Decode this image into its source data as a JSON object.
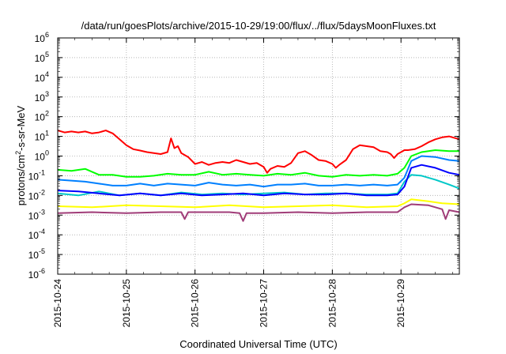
{
  "chart_data": {
    "type": "line",
    "title": "/data/run/goesPlots/archive/2015-10-29/19:00/flux/../flux/5daysMoonFluxes.txt",
    "xlabel": "Coordinated Universal Time (UTC)",
    "ylabel": {
      "base": "protons/cm",
      "sup": "2",
      "rest": "-s-sr-MeV"
    },
    "x_ticks": [
      "2015-10-24",
      "2015-10-25",
      "2015-10-26",
      "2015-10-27",
      "2015-10-28",
      "2015-10-29"
    ],
    "x_range_days": [
      0,
      5.85
    ],
    "y_scale": "log",
    "y_ticks": [
      {
        "base": "10",
        "exp": "-6"
      },
      {
        "base": "10",
        "exp": "-5"
      },
      {
        "base": "10",
        "exp": "-4"
      },
      {
        "base": "10",
        "exp": "-3"
      },
      {
        "base": "10",
        "exp": "-2"
      },
      {
        "base": "10",
        "exp": "-1"
      },
      {
        "base": "10",
        "exp": "0"
      },
      {
        "base": "10",
        "exp": "1"
      },
      {
        "base": "10",
        "exp": "2"
      },
      {
        "base": "10",
        "exp": "3"
      },
      {
        "base": "10",
        "exp": "4"
      },
      {
        "base": "10",
        "exp": "5"
      },
      {
        "base": "10",
        "exp": "6"
      }
    ],
    "ylim_log10": [
      -6,
      6
    ],
    "grid": true,
    "legend": "none",
    "series": [
      {
        "color": "#ff0000",
        "points": [
          [
            0,
            1.3
          ],
          [
            0.1,
            1.2
          ],
          [
            0.2,
            1.25
          ],
          [
            0.3,
            1.2
          ],
          [
            0.4,
            1.25
          ],
          [
            0.5,
            1.15
          ],
          [
            0.6,
            1.2
          ],
          [
            0.7,
            1.3
          ],
          [
            0.8,
            1.15
          ],
          [
            0.9,
            0.85
          ],
          [
            1.0,
            0.55
          ],
          [
            1.1,
            0.35
          ],
          [
            1.2,
            0.28
          ],
          [
            1.3,
            0.2
          ],
          [
            1.4,
            0.15
          ],
          [
            1.5,
            0.1
          ],
          [
            1.6,
            0.2
          ],
          [
            1.65,
            0.9
          ],
          [
            1.7,
            0.4
          ],
          [
            1.75,
            0.5
          ],
          [
            1.8,
            0.15
          ],
          [
            1.9,
            -0.05
          ],
          [
            2.0,
            -0.4
          ],
          [
            2.1,
            -0.3
          ],
          [
            2.2,
            -0.45
          ],
          [
            2.3,
            -0.35
          ],
          [
            2.4,
            -0.3
          ],
          [
            2.5,
            -0.35
          ],
          [
            2.6,
            -0.2
          ],
          [
            2.7,
            -0.3
          ],
          [
            2.8,
            -0.4
          ],
          [
            2.9,
            -0.35
          ],
          [
            3.0,
            -0.55
          ],
          [
            3.05,
            -0.85
          ],
          [
            3.1,
            -0.65
          ],
          [
            3.2,
            -0.5
          ],
          [
            3.3,
            -0.55
          ],
          [
            3.4,
            -0.35
          ],
          [
            3.5,
            0.15
          ],
          [
            3.6,
            0.25
          ],
          [
            3.7,
            0.05
          ],
          [
            3.8,
            -0.2
          ],
          [
            3.9,
            -0.25
          ],
          [
            4.0,
            -0.4
          ],
          [
            4.05,
            -0.6
          ],
          [
            4.1,
            -0.45
          ],
          [
            4.2,
            -0.2
          ],
          [
            4.3,
            0.35
          ],
          [
            4.4,
            0.55
          ],
          [
            4.5,
            0.5
          ],
          [
            4.6,
            0.45
          ],
          [
            4.7,
            0.25
          ],
          [
            4.8,
            0.2
          ],
          [
            4.85,
            0.1
          ],
          [
            4.9,
            -0.1
          ],
          [
            4.95,
            0.1
          ],
          [
            5.0,
            0.2
          ],
          [
            5.05,
            0.3
          ],
          [
            5.1,
            0.3
          ],
          [
            5.2,
            0.35
          ],
          [
            5.3,
            0.5
          ],
          [
            5.4,
            0.7
          ],
          [
            5.5,
            0.85
          ],
          [
            5.6,
            0.95
          ],
          [
            5.7,
            1.0
          ],
          [
            5.8,
            0.9
          ],
          [
            5.85,
            0.85
          ]
        ]
      },
      {
        "color": "#00ff00",
        "points": [
          [
            0,
            -0.7
          ],
          [
            0.2,
            -0.75
          ],
          [
            0.4,
            -0.65
          ],
          [
            0.6,
            -0.95
          ],
          [
            0.8,
            -0.95
          ],
          [
            1.0,
            -1.05
          ],
          [
            1.2,
            -1.05
          ],
          [
            1.4,
            -1.0
          ],
          [
            1.6,
            -0.9
          ],
          [
            1.8,
            -0.95
          ],
          [
            2.0,
            -0.95
          ],
          [
            2.2,
            -0.8
          ],
          [
            2.4,
            -0.95
          ],
          [
            2.6,
            -0.9
          ],
          [
            2.8,
            -0.95
          ],
          [
            3.0,
            -1.0
          ],
          [
            3.2,
            -0.9
          ],
          [
            3.4,
            -0.95
          ],
          [
            3.6,
            -0.85
          ],
          [
            3.8,
            -1.0
          ],
          [
            4.0,
            -1.05
          ],
          [
            4.2,
            -0.95
          ],
          [
            4.4,
            -1.0
          ],
          [
            4.6,
            -0.95
          ],
          [
            4.8,
            -1.0
          ],
          [
            4.95,
            -0.9
          ],
          [
            5.05,
            -0.6
          ],
          [
            5.15,
            0.0
          ],
          [
            5.3,
            0.2
          ],
          [
            5.5,
            0.3
          ],
          [
            5.7,
            0.25
          ],
          [
            5.85,
            0.25
          ]
        ]
      },
      {
        "color": "#00c8c8",
        "points": [
          [
            0,
            -1.9
          ],
          [
            0.3,
            -2.0
          ],
          [
            0.6,
            -1.8
          ],
          [
            0.9,
            -2.0
          ],
          [
            1.2,
            -1.9
          ],
          [
            1.5,
            -2.0
          ],
          [
            1.8,
            -1.85
          ],
          [
            2.1,
            -1.95
          ],
          [
            2.4,
            -1.9
          ],
          [
            2.7,
            -1.95
          ],
          [
            3.0,
            -1.9
          ],
          [
            3.3,
            -1.85
          ],
          [
            3.6,
            -1.95
          ],
          [
            3.9,
            -1.9
          ],
          [
            4.2,
            -1.9
          ],
          [
            4.5,
            -1.95
          ],
          [
            4.8,
            -1.95
          ],
          [
            4.95,
            -1.9
          ],
          [
            5.05,
            -1.3
          ],
          [
            5.15,
            -0.95
          ],
          [
            5.3,
            -1.0
          ],
          [
            5.5,
            -1.2
          ],
          [
            5.7,
            -1.45
          ],
          [
            5.85,
            -1.65
          ]
        ]
      },
      {
        "color": "#0080ff",
        "points": [
          [
            0,
            -1.2
          ],
          [
            0.2,
            -1.25
          ],
          [
            0.4,
            -1.3
          ],
          [
            0.6,
            -1.4
          ],
          [
            0.8,
            -1.5
          ],
          [
            1.0,
            -1.5
          ],
          [
            1.2,
            -1.4
          ],
          [
            1.4,
            -1.5
          ],
          [
            1.6,
            -1.4
          ],
          [
            1.8,
            -1.45
          ],
          [
            2.0,
            -1.5
          ],
          [
            2.2,
            -1.35
          ],
          [
            2.4,
            -1.45
          ],
          [
            2.6,
            -1.5
          ],
          [
            2.8,
            -1.45
          ],
          [
            3.0,
            -1.55
          ],
          [
            3.2,
            -1.45
          ],
          [
            3.4,
            -1.45
          ],
          [
            3.6,
            -1.4
          ],
          [
            3.8,
            -1.5
          ],
          [
            4.0,
            -1.5
          ],
          [
            4.2,
            -1.45
          ],
          [
            4.4,
            -1.5
          ],
          [
            4.6,
            -1.45
          ],
          [
            4.8,
            -1.5
          ],
          [
            4.95,
            -1.45
          ],
          [
            5.05,
            -1.1
          ],
          [
            5.15,
            -0.25
          ],
          [
            5.3,
            0.0
          ],
          [
            5.5,
            -0.05
          ],
          [
            5.7,
            -0.2
          ],
          [
            5.85,
            -0.25
          ]
        ]
      },
      {
        "color": "#0000ff",
        "points": [
          [
            0,
            -1.75
          ],
          [
            0.3,
            -1.8
          ],
          [
            0.6,
            -1.9
          ],
          [
            0.9,
            -2.0
          ],
          [
            1.2,
            -1.9
          ],
          [
            1.5,
            -2.0
          ],
          [
            1.8,
            -1.9
          ],
          [
            2.1,
            -2.0
          ],
          [
            2.4,
            -1.95
          ],
          [
            2.7,
            -1.9
          ],
          [
            3.0,
            -2.0
          ],
          [
            3.3,
            -1.9
          ],
          [
            3.6,
            -1.95
          ],
          [
            3.9,
            -1.95
          ],
          [
            4.2,
            -1.9
          ],
          [
            4.5,
            -2.0
          ],
          [
            4.8,
            -2.0
          ],
          [
            4.95,
            -1.95
          ],
          [
            5.05,
            -1.55
          ],
          [
            5.15,
            -0.6
          ],
          [
            5.3,
            -0.45
          ],
          [
            5.5,
            -0.6
          ],
          [
            5.7,
            -0.85
          ],
          [
            5.85,
            -0.95
          ]
        ]
      },
      {
        "color": "#ffff00",
        "points": [
          [
            0,
            -2.55
          ],
          [
            0.5,
            -2.6
          ],
          [
            1.0,
            -2.5
          ],
          [
            1.5,
            -2.55
          ],
          [
            2.0,
            -2.6
          ],
          [
            2.5,
            -2.5
          ],
          [
            3.0,
            -2.6
          ],
          [
            3.5,
            -2.55
          ],
          [
            4.0,
            -2.5
          ],
          [
            4.5,
            -2.6
          ],
          [
            4.95,
            -2.55
          ],
          [
            5.05,
            -2.4
          ],
          [
            5.15,
            -2.2
          ],
          [
            5.4,
            -2.3
          ],
          [
            5.6,
            -2.4
          ],
          [
            5.85,
            -2.45
          ]
        ]
      },
      {
        "color": "#a03c78",
        "points": [
          [
            0,
            -2.9
          ],
          [
            0.5,
            -2.85
          ],
          [
            1.0,
            -2.9
          ],
          [
            1.5,
            -2.85
          ],
          [
            1.8,
            -2.85
          ],
          [
            1.85,
            -3.2
          ],
          [
            1.9,
            -2.85
          ],
          [
            2.5,
            -2.85
          ],
          [
            2.65,
            -2.9
          ],
          [
            2.7,
            -3.3
          ],
          [
            2.75,
            -2.9
          ],
          [
            3.0,
            -2.9
          ],
          [
            3.5,
            -2.85
          ],
          [
            4.0,
            -2.9
          ],
          [
            4.5,
            -2.85
          ],
          [
            4.95,
            -2.85
          ],
          [
            5.05,
            -2.6
          ],
          [
            5.15,
            -2.45
          ],
          [
            5.4,
            -2.5
          ],
          [
            5.6,
            -2.7
          ],
          [
            5.65,
            -3.2
          ],
          [
            5.7,
            -2.75
          ],
          [
            5.85,
            -2.85
          ]
        ]
      }
    ]
  }
}
